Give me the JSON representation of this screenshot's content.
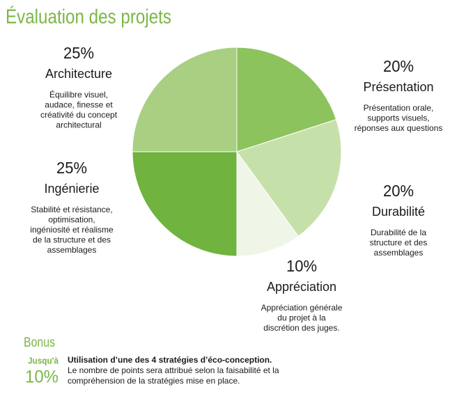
{
  "chart_data": {
    "type": "pie",
    "title": "Évaluation des projets",
    "categories": [
      "Présentation",
      "Durabilité",
      "Appréciation",
      "Ingénierie",
      "Architecture"
    ],
    "values": [
      20,
      20,
      10,
      25,
      25
    ],
    "value_labels": [
      "20%",
      "20%",
      "10%",
      "25%",
      "25%"
    ],
    "colors": [
      "#8cc35c",
      "#c6e0aa",
      "#eff6e8",
      "#70b33f",
      "#a8cf82"
    ],
    "descriptions": [
      [
        "Présentation orale,",
        "supports visuels,",
        "réponses aux questions"
      ],
      [
        "Durabilité de la",
        "structure et des",
        "assemblages"
      ],
      [
        "Appréciation générale",
        "du projet à la",
        "discrétion des juges."
      ],
      [
        "Stabilité et résistance,",
        "optimisation,",
        "ingéniosité et réalisme",
        "de la structure et des",
        "assemblages"
      ],
      [
        "Équilibre visuel,",
        "audace, finesse et",
        "créativité du concept",
        "architectural"
      ]
    ]
  },
  "bonus": {
    "title": "Bonus",
    "prefix": "Jusqu'à",
    "amount": "10%",
    "heading": "Utilisation d’une des 4 stratégies d’éco-conception.",
    "lines": [
      "Le nombre de points sera attribué selon la faisabilité et la",
      "compréhension de la stratégies mise en place."
    ]
  }
}
